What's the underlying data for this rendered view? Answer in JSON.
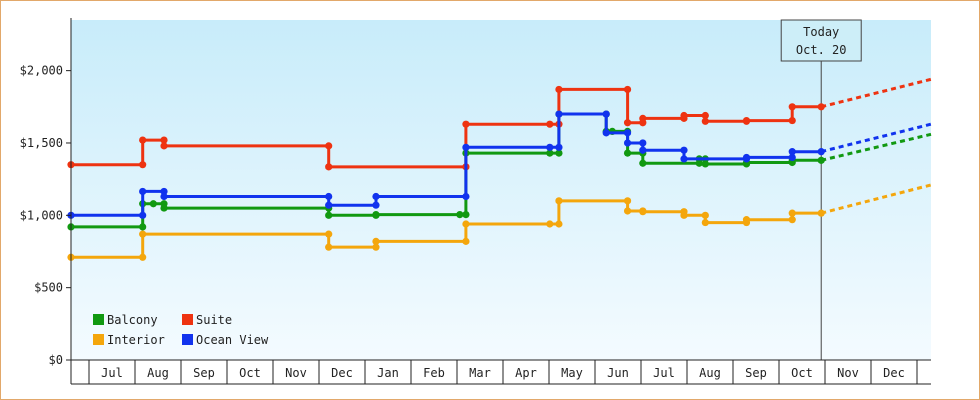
{
  "chart_data": {
    "type": "line",
    "title": "",
    "xlabel": "",
    "ylabel": "",
    "x_ticks": [
      "Jul",
      "Aug",
      "Sep",
      "Oct",
      "Nov",
      "Dec",
      "Jan",
      "Feb",
      "Mar",
      "Apr",
      "May",
      "Jun",
      "Jul",
      "Aug",
      "Sep",
      "Oct",
      "Nov",
      "Dec"
    ],
    "x_range": [
      "2013-06-15",
      "2014-12-31"
    ],
    "ylim": [
      0,
      2350
    ],
    "y_ticks": [
      {
        "value": 0,
        "label": "$0"
      },
      {
        "value": 500,
        "label": "$500"
      },
      {
        "value": 1000,
        "label": "$1,000"
      },
      {
        "value": 1500,
        "label": "$1,500"
      },
      {
        "value": 2000,
        "label": "$2,000"
      }
    ],
    "grid": false,
    "legend_position": "bottom-left",
    "annotation": {
      "line1": "Today",
      "line2": "Oct. 20",
      "date": "2014-10-20"
    },
    "projection": {
      "from": "2014-10-20",
      "to": "2014-12-31",
      "style": "dashed"
    },
    "series": [
      {
        "name": "Balcony",
        "color": "#119911",
        "points": [
          [
            "2013-06-15",
            920
          ],
          [
            "2013-08-01",
            920
          ],
          [
            "2013-08-01",
            1080
          ],
          [
            "2013-08-08",
            1080
          ],
          [
            "2013-08-15",
            1080
          ],
          [
            "2013-08-15",
            1050
          ],
          [
            "2013-12-01",
            1050
          ],
          [
            "2013-12-01",
            1000
          ],
          [
            "2014-01-01",
            1000
          ],
          [
            "2014-01-01",
            1005
          ],
          [
            "2014-02-25",
            1005
          ],
          [
            "2014-03-01",
            1005
          ],
          [
            "2014-03-01",
            1430
          ],
          [
            "2014-04-25",
            1430
          ],
          [
            "2014-05-01",
            1430
          ],
          [
            "2014-05-01",
            1700
          ],
          [
            "2014-06-01",
            1700
          ],
          [
            "2014-06-01",
            1580
          ],
          [
            "2014-06-05",
            1580
          ],
          [
            "2014-06-15",
            1580
          ],
          [
            "2014-06-15",
            1430
          ],
          [
            "2014-06-25",
            1430
          ],
          [
            "2014-06-25",
            1360
          ],
          [
            "2014-08-01",
            1360
          ],
          [
            "2014-08-01",
            1390
          ],
          [
            "2014-08-05",
            1390
          ],
          [
            "2014-08-05",
            1355
          ],
          [
            "2014-09-01",
            1355
          ],
          [
            "2014-09-01",
            1365
          ],
          [
            "2014-10-01",
            1365
          ],
          [
            "2014-10-01",
            1380
          ],
          [
            "2014-10-20",
            1380
          ]
        ],
        "projection_end": 1560
      },
      {
        "name": "Suite",
        "color": "#ee3311",
        "points": [
          [
            "2013-06-15",
            1350
          ],
          [
            "2013-08-01",
            1350
          ],
          [
            "2013-08-01",
            1520
          ],
          [
            "2013-08-15",
            1520
          ],
          [
            "2013-08-15",
            1480
          ],
          [
            "2013-12-01",
            1480
          ],
          [
            "2013-12-01",
            1335
          ],
          [
            "2014-03-01",
            1335
          ],
          [
            "2014-03-01",
            1630
          ],
          [
            "2014-04-25",
            1630
          ],
          [
            "2014-05-01",
            1630
          ],
          [
            "2014-05-01",
            1870
          ],
          [
            "2014-06-15",
            1870
          ],
          [
            "2014-06-15",
            1640
          ],
          [
            "2014-06-25",
            1640
          ],
          [
            "2014-06-25",
            1670
          ],
          [
            "2014-07-22",
            1670
          ],
          [
            "2014-07-22",
            1690
          ],
          [
            "2014-08-05",
            1690
          ],
          [
            "2014-08-05",
            1650
          ],
          [
            "2014-09-01",
            1650
          ],
          [
            "2014-09-01",
            1655
          ],
          [
            "2014-10-01",
            1655
          ],
          [
            "2014-10-01",
            1750
          ],
          [
            "2014-10-20",
            1750
          ]
        ],
        "projection_end": 1940
      },
      {
        "name": "Interior",
        "color": "#f4a60c",
        "points": [
          [
            "2013-06-15",
            710
          ],
          [
            "2013-08-01",
            710
          ],
          [
            "2013-08-01",
            870
          ],
          [
            "2013-12-01",
            870
          ],
          [
            "2013-12-01",
            780
          ],
          [
            "2014-01-01",
            780
          ],
          [
            "2014-01-01",
            820
          ],
          [
            "2014-03-01",
            820
          ],
          [
            "2014-03-01",
            940
          ],
          [
            "2014-04-25",
            940
          ],
          [
            "2014-05-01",
            940
          ],
          [
            "2014-05-01",
            1100
          ],
          [
            "2014-06-15",
            1100
          ],
          [
            "2014-06-15",
            1030
          ],
          [
            "2014-06-25",
            1030
          ],
          [
            "2014-06-25",
            1025
          ],
          [
            "2014-07-22",
            1025
          ],
          [
            "2014-07-22",
            1000
          ],
          [
            "2014-08-05",
            1000
          ],
          [
            "2014-08-05",
            950
          ],
          [
            "2014-09-01",
            950
          ],
          [
            "2014-09-01",
            970
          ],
          [
            "2014-10-01",
            970
          ],
          [
            "2014-10-01",
            1015
          ],
          [
            "2014-10-20",
            1015
          ]
        ],
        "projection_end": 1210
      },
      {
        "name": "Ocean View",
        "color": "#1133ee",
        "points": [
          [
            "2013-06-15",
            1000
          ],
          [
            "2013-08-01",
            1000
          ],
          [
            "2013-08-01",
            1165
          ],
          [
            "2013-08-15",
            1165
          ],
          [
            "2013-08-15",
            1130
          ],
          [
            "2013-12-01",
            1130
          ],
          [
            "2013-12-01",
            1070
          ],
          [
            "2014-01-01",
            1070
          ],
          [
            "2014-01-01",
            1130
          ],
          [
            "2014-03-01",
            1130
          ],
          [
            "2014-03-01",
            1470
          ],
          [
            "2014-04-25",
            1470
          ],
          [
            "2014-05-01",
            1470
          ],
          [
            "2014-05-01",
            1700
          ],
          [
            "2014-06-01",
            1700
          ],
          [
            "2014-06-01",
            1570
          ],
          [
            "2014-06-15",
            1570
          ],
          [
            "2014-06-15",
            1500
          ],
          [
            "2014-06-25",
            1500
          ],
          [
            "2014-06-25",
            1450
          ],
          [
            "2014-07-22",
            1450
          ],
          [
            "2014-07-22",
            1390
          ],
          [
            "2014-09-01",
            1390
          ],
          [
            "2014-09-01",
            1400
          ],
          [
            "2014-10-01",
            1400
          ],
          [
            "2014-10-01",
            1440
          ],
          [
            "2014-10-20",
            1440
          ]
        ],
        "projection_end": 1630
      }
    ]
  }
}
